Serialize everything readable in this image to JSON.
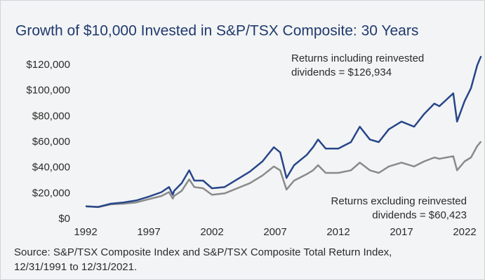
{
  "chart_data": {
    "type": "line",
    "title": "Growth of $10,000 Invested in S&P/TSX Composite: 30 Years",
    "annotations": [
      "Returns including reinvested",
      "dividends = $126,934",
      "Returns excluding reinvested",
      "dividends = $60,423"
    ],
    "source": [
      "Source: S&P/TSX Composite Index and S&P/TSX Composite Total Return Index,",
      "12/31/1991 to 12/31/2021."
    ],
    "x": [
      1992,
      1993,
      1994,
      1995,
      1996,
      1997,
      1998,
      1998.6,
      1998.9,
      1999,
      1999.6,
      2000.2,
      2000.6,
      2001.3,
      2002,
      2003,
      2004,
      2005,
      2006,
      2006.9,
      2007.4,
      2007.9,
      2008.5,
      2009.5,
      2010,
      2010.4,
      2011,
      2012,
      2013,
      2013.7,
      2014.5,
      2015.2,
      2016,
      2017,
      2018,
      2018.8,
      2019.6,
      2020,
      2021.1,
      2021.4,
      2022,
      2022.5,
      2023,
      2023.3
    ],
    "series": [
      {
        "name": "Returns including reinvested dividends",
        "color": "#27468a",
        "values": [
          10000,
          9500,
          12000,
          13000,
          14500,
          17500,
          21000,
          25000,
          19000,
          22000,
          28000,
          38000,
          30000,
          30000,
          24000,
          25000,
          31000,
          37000,
          45000,
          56000,
          52000,
          32000,
          42000,
          50000,
          56000,
          62000,
          55000,
          55000,
          60000,
          72000,
          62000,
          60000,
          70000,
          76000,
          72000,
          82000,
          90000,
          88000,
          98000,
          76000,
          92000,
          102000,
          120000,
          127000
        ]
      },
      {
        "name": "Returns excluding reinvested dividends",
        "color": "#8a8a8a",
        "values": [
          10000,
          9300,
          11500,
          12000,
          13000,
          15500,
          18000,
          21000,
          16000,
          18000,
          22000,
          31000,
          25000,
          24000,
          19000,
          20000,
          24000,
          28000,
          34000,
          41000,
          38000,
          23000,
          30000,
          35000,
          38000,
          42000,
          36000,
          36000,
          38000,
          44000,
          38000,
          36000,
          41000,
          44000,
          41000,
          45000,
          48000,
          47000,
          49000,
          38000,
          45000,
          48000,
          57000,
          60500
        ]
      }
    ],
    "xlim": [
      1992,
      2023.3
    ],
    "xticks": [
      1992,
      1997,
      2002,
      2007,
      2012,
      2017,
      2022
    ],
    "ylim": [
      0,
      130000
    ],
    "yticks": [
      {
        "value": 0,
        "label": "$0"
      },
      {
        "value": 20000,
        "label": "$20,000"
      },
      {
        "value": 40000,
        "label": "$40,000"
      },
      {
        "value": 60000,
        "label": "$60,000"
      },
      {
        "value": 80000,
        "label": "$80,000"
      },
      {
        "value": 100000,
        "label": "$100,000"
      },
      {
        "value": 120000,
        "label": "$120,000"
      }
    ]
  }
}
